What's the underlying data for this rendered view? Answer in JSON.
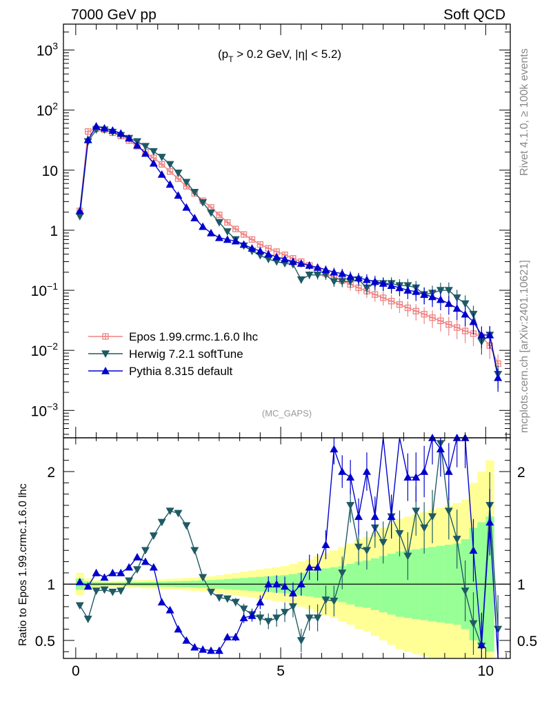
{
  "header": {
    "left": "7000 GeV pp",
    "right": "Soft QCD"
  },
  "annotation": {
    "cut_text": "(p",
    "cut_sub": "T",
    "cut_rest": " > 0.2 GeV, |η| < 5.2)",
    "analysis": "(MC_GAPS)"
  },
  "side": {
    "rivet": "Rivet 4.1.0, ≥ 100k events",
    "mcplots": "mcplots.cern.ch [arXiv:2401.10621]"
  },
  "colors": {
    "epos": "#f08080",
    "herwig": "#1e5a64",
    "pythia": "#0000cd",
    "band_yellow": "#ffff96",
    "band_green": "#96ff96"
  },
  "chart_data": [
    {
      "type": "line",
      "panel": "main",
      "yscale": "log",
      "xlim": [
        -0.3,
        10.6
      ],
      "ylim": [
        0.00035,
        2700
      ],
      "ylabel": "",
      "y_tick_labels": [
        {
          "v": 1000,
          "base": "10",
          "exp": "3"
        },
        {
          "v": 100,
          "base": "10",
          "exp": "2"
        },
        {
          "v": 10,
          "base": "10",
          "exp": ""
        },
        {
          "v": 1,
          "base": "1",
          "exp": ""
        },
        {
          "v": 0.1,
          "base": "10",
          "exp": "−1"
        },
        {
          "v": 0.01,
          "base": "10",
          "exp": "−2"
        },
        {
          "v": 0.001,
          "base": "10",
          "exp": "−3"
        }
      ],
      "legend": [
        "Epos 1.99.crmc.1.6.0 lhc",
        "Herwig 7.2.1 softTune",
        "Pythia 8.315 default"
      ],
      "x": [
        0.1,
        0.3,
        0.5,
        0.7,
        0.9,
        1.1,
        1.3,
        1.5,
        1.7,
        1.9,
        2.1,
        2.3,
        2.5,
        2.7,
        2.9,
        3.1,
        3.3,
        3.5,
        3.7,
        3.9,
        4.1,
        4.3,
        4.5,
        4.7,
        4.9,
        5.1,
        5.3,
        5.5,
        5.7,
        5.9,
        6.1,
        6.3,
        6.5,
        6.7,
        6.9,
        7.1,
        7.3,
        7.5,
        7.7,
        7.9,
        8.1,
        8.3,
        8.5,
        8.7,
        8.9,
        9.1,
        9.3,
        9.5,
        9.7,
        9.9,
        10.1,
        10.3
      ],
      "series": [
        {
          "name": "Epos 1.99.crmc.1.6.0 lhc",
          "marker": "cross",
          "values": [
            2.1,
            44,
            49,
            47,
            42,
            37,
            31,
            25,
            20,
            16,
            12.5,
            9.5,
            7.2,
            5.4,
            4.1,
            3.1,
            2.4,
            1.8,
            1.35,
            1.05,
            0.85,
            0.7,
            0.58,
            0.5,
            0.44,
            0.39,
            0.34,
            0.3,
            0.26,
            0.22,
            0.19,
            0.165,
            0.145,
            0.125,
            0.11,
            0.097,
            0.085,
            0.075,
            0.066,
            0.058,
            0.051,
            0.045,
            0.04,
            0.035,
            0.031,
            0.027,
            0.024,
            0.021,
            0.019,
            0.017,
            0.012,
            0.006
          ]
        },
        {
          "name": "Herwig 7.2.1 softTune",
          "marker": "tri-down",
          "values": [
            1.7,
            30,
            47,
            47,
            43,
            38,
            34,
            30,
            25,
            20.5,
            16.5,
            12.5,
            9,
            6.3,
            4.3,
            2.9,
            1.95,
            1.35,
            0.95,
            0.7,
            0.55,
            0.45,
            0.38,
            0.33,
            0.3,
            0.28,
            0.27,
            0.15,
            0.18,
            0.18,
            0.18,
            0.14,
            0.14,
            0.14,
            0.15,
            0.11,
            0.13,
            0.13,
            0.13,
            0.12,
            0.12,
            0.11,
            0.085,
            0.09,
            0.1,
            0.1,
            0.075,
            0.06,
            0.04,
            0.014,
            0.018,
            0.004
          ]
        },
        {
          "name": "Pythia 8.315 default",
          "marker": "tri-up",
          "values": [
            2.1,
            32,
            54,
            50,
            46,
            41,
            34,
            26,
            19,
            13,
            8.5,
            5.8,
            3.8,
            2.4,
            1.6,
            1.15,
            0.9,
            0.75,
            0.7,
            0.66,
            0.58,
            0.5,
            0.45,
            0.4,
            0.36,
            0.33,
            0.3,
            0.28,
            0.26,
            0.24,
            0.22,
            0.2,
            0.19,
            0.17,
            0.16,
            0.15,
            0.14,
            0.13,
            0.12,
            0.11,
            0.1,
            0.095,
            0.085,
            0.078,
            0.07,
            0.06,
            0.05,
            0.04,
            0.03,
            0.018,
            0.018,
            0.0035
          ]
        }
      ]
    },
    {
      "type": "line",
      "panel": "ratio",
      "yscale": "linear",
      "xlim": [
        -0.3,
        10.6
      ],
      "ylim": [
        0.34,
        2.3
      ],
      "ylabel": "Ratio to Epos 1.99.crmc.1.6.0 lhc",
      "y_ticks": [
        0.5,
        1,
        2
      ],
      "y_tick_labels": [
        "0.5",
        "1",
        "2"
      ],
      "x_ticks": [
        0,
        5,
        10
      ],
      "x_tick_labels": [
        "0",
        "5",
        "10"
      ],
      "reference": 1.0,
      "band_yellow_halfwidth": [
        0.1,
        0.05,
        0.035,
        0.03,
        0.028,
        0.03,
        0.032,
        0.035,
        0.038,
        0.04,
        0.043,
        0.047,
        0.05,
        0.055,
        0.06,
        0.065,
        0.07,
        0.08,
        0.09,
        0.1,
        0.11,
        0.12,
        0.13,
        0.14,
        0.15,
        0.16,
        0.18,
        0.2,
        0.22,
        0.25,
        0.28,
        0.3,
        0.33,
        0.36,
        0.4,
        0.42,
        0.46,
        0.5,
        0.54,
        0.58,
        0.6,
        0.62,
        0.64,
        0.66,
        0.68,
        0.7,
        0.72,
        0.75,
        0.9,
        1.0,
        1.1,
        1.2
      ],
      "band_green_halfwidth": [
        0.05,
        0.025,
        0.018,
        0.015,
        0.014,
        0.015,
        0.016,
        0.018,
        0.019,
        0.02,
        0.022,
        0.024,
        0.026,
        0.028,
        0.03,
        0.033,
        0.036,
        0.04,
        0.045,
        0.05,
        0.055,
        0.06,
        0.065,
        0.07,
        0.075,
        0.08,
        0.09,
        0.1,
        0.11,
        0.12,
        0.14,
        0.15,
        0.16,
        0.18,
        0.2,
        0.21,
        0.23,
        0.25,
        0.27,
        0.29,
        0.3,
        0.31,
        0.32,
        0.33,
        0.34,
        0.35,
        0.36,
        0.4,
        0.5,
        0.55,
        0.6,
        0.7
      ],
      "series": [
        {
          "name": "Herwig 7.2.1 softTune",
          "values": [
            0.81,
            0.69,
            0.94,
            0.95,
            0.93,
            0.94,
            1.03,
            1.13,
            1.3,
            1.43,
            1.55,
            1.65,
            1.63,
            1.52,
            1.3,
            1.06,
            0.93,
            0.88,
            0.87,
            0.84,
            0.78,
            0.73,
            0.7,
            0.67,
            0.7,
            0.75,
            0.8,
            0.5,
            0.7,
            0.7,
            0.86,
            0.85,
            1.1,
            1.7,
            1.33,
            1.3,
            1.5,
            1.37,
            1.6,
            1.45,
            1.25,
            1.65,
            1.5,
            1.6,
            2.25,
            1.65,
            1.4,
            0.94,
            0.65,
            0.45,
            1.7,
            0.6
          ]
        },
        {
          "name": "Pythia 8.315 default",
          "values": [
            1.02,
            0.98,
            1.1,
            1.06,
            1.1,
            1.1,
            1.15,
            1.24,
            1.2,
            1.15,
            0.84,
            0.77,
            0.6,
            0.5,
            0.44,
            0.42,
            0.41,
            0.41,
            0.53,
            0.53,
            0.7,
            0.72,
            0.84,
            1.0,
            1.0,
            0.98,
            0.92,
            1.0,
            1.15,
            1.15,
            1.35,
            2.2,
            2.0,
            1.95,
            1.6,
            2.0,
            1.6,
            2.5,
            1.6,
            2.7,
            1.95,
            1.95,
            2.0,
            2.3,
            2.2,
            2.0,
            2.3,
            2.3,
            1.3,
            0.46,
            1.55,
            0.3
          ]
        }
      ]
    }
  ]
}
